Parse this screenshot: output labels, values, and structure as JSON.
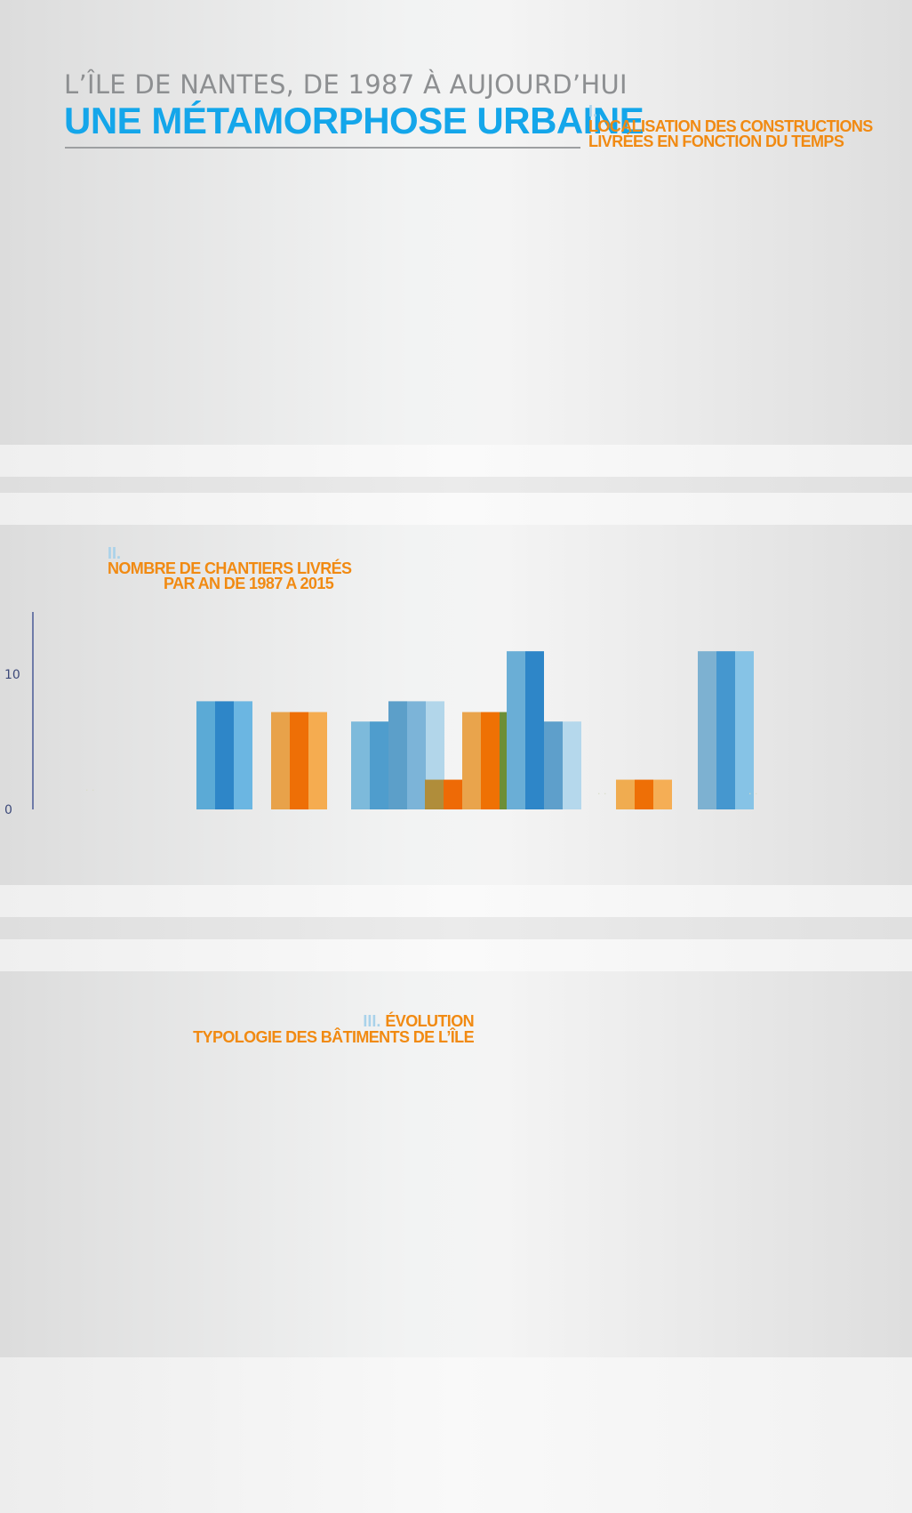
{
  "header": {
    "kicker": "L’ÎLE DE NANTES, DE 1987 À AUJOURD’HUI",
    "title": "UNE MÉTAMORPHOSE URBAINE"
  },
  "section1": {
    "number": "I.",
    "line1": "LOCALISATION DES CONSTRUCTIONS",
    "line2": "LIVRÉES EN FONCTION DU TEMPS"
  },
  "section2": {
    "number": "II.",
    "line1": "NOMBRE DE CHANTIERS LIVRÉS",
    "line2": "PAR AN DE 1987 A 2015"
  },
  "section3": {
    "number": "III.",
    "line1": "ÉVOLUTION",
    "line2": "TYPOLOGIE DES BÂTIMENTS DE L’ÎLE"
  },
  "colors": {
    "title_blue": "#14a6ea",
    "orange": "#f18a12",
    "axis": "#4a5a96"
  },
  "chart_data": {
    "type": "bar",
    "title": "NOMBRE DE CHANTIERS LIVRÉS PAR AN DE 1987 A 2015",
    "xlabel": "",
    "ylabel": "",
    "ylim": [
      0,
      14.5
    ],
    "yticks": [
      0,
      10
    ],
    "grid": false,
    "legend": "none",
    "bars": [
      {
        "group": 1,
        "sub": 1,
        "value": 8,
        "color": "#5baad6"
      },
      {
        "group": 1,
        "sub": 2,
        "value": 8,
        "color": "#2e86c8"
      },
      {
        "group": 1,
        "sub": 3,
        "value": 8,
        "color": "#6bb6e2"
      },
      {
        "group": 2,
        "sub": 1,
        "value": 7.2,
        "color": "#e8a24a"
      },
      {
        "group": 2,
        "sub": 2,
        "value": 7.2,
        "color": "#ee6f06"
      },
      {
        "group": 2,
        "sub": 3,
        "value": 7.2,
        "color": "#f5ac50"
      },
      {
        "group": 3,
        "sub": 1,
        "value": 6.5,
        "color": "#7dbadb"
      },
      {
        "group": 3,
        "sub": 2,
        "value": 6.5,
        "color": "#4f9dcd"
      },
      {
        "group": 3,
        "sub": 3,
        "value": 8,
        "color": "#5c9fc9"
      },
      {
        "group": 3,
        "sub": 4,
        "value": 8,
        "color": "#7cb4d8"
      },
      {
        "group": 3,
        "sub": 5,
        "value": 8,
        "color": "#b2d6ea"
      },
      {
        "group": 4,
        "sub": 1,
        "value": 2.2,
        "color": "#b08d3a"
      },
      {
        "group": 4,
        "sub": 2,
        "value": 2.2,
        "color": "#ee6a06"
      },
      {
        "group": 4,
        "sub": 3,
        "value": 7.2,
        "color": "#e9a44c"
      },
      {
        "group": 4,
        "sub": 4,
        "value": 7.2,
        "color": "#ef7104"
      },
      {
        "group": 4,
        "sub": 5,
        "value": 7.2,
        "color": "#6d8e36"
      },
      {
        "group": 5,
        "sub": 1,
        "value": 11.7,
        "color": "#6aaed6"
      },
      {
        "group": 5,
        "sub": 2,
        "value": 11.7,
        "color": "#2e86c8"
      },
      {
        "group": 5,
        "sub": 3,
        "value": 6.5,
        "color": "#5e9fcb"
      },
      {
        "group": 5,
        "sub": 4,
        "value": 6.5,
        "color": "#b5d8ec"
      },
      {
        "group": 6,
        "sub": 1,
        "value": 2.2,
        "color": "#f0ac50"
      },
      {
        "group": 6,
        "sub": 2,
        "value": 2.2,
        "color": "#ee6f06"
      },
      {
        "group": 6,
        "sub": 3,
        "value": 2.2,
        "color": "#f5ae55"
      },
      {
        "group": 7,
        "sub": 1,
        "value": 11.7,
        "color": "#7db1d1"
      },
      {
        "group": 7,
        "sub": 2,
        "value": 11.7,
        "color": "#4597cf"
      },
      {
        "group": 7,
        "sub": 3,
        "value": 11.7,
        "color": "#86c3e6"
      }
    ]
  }
}
